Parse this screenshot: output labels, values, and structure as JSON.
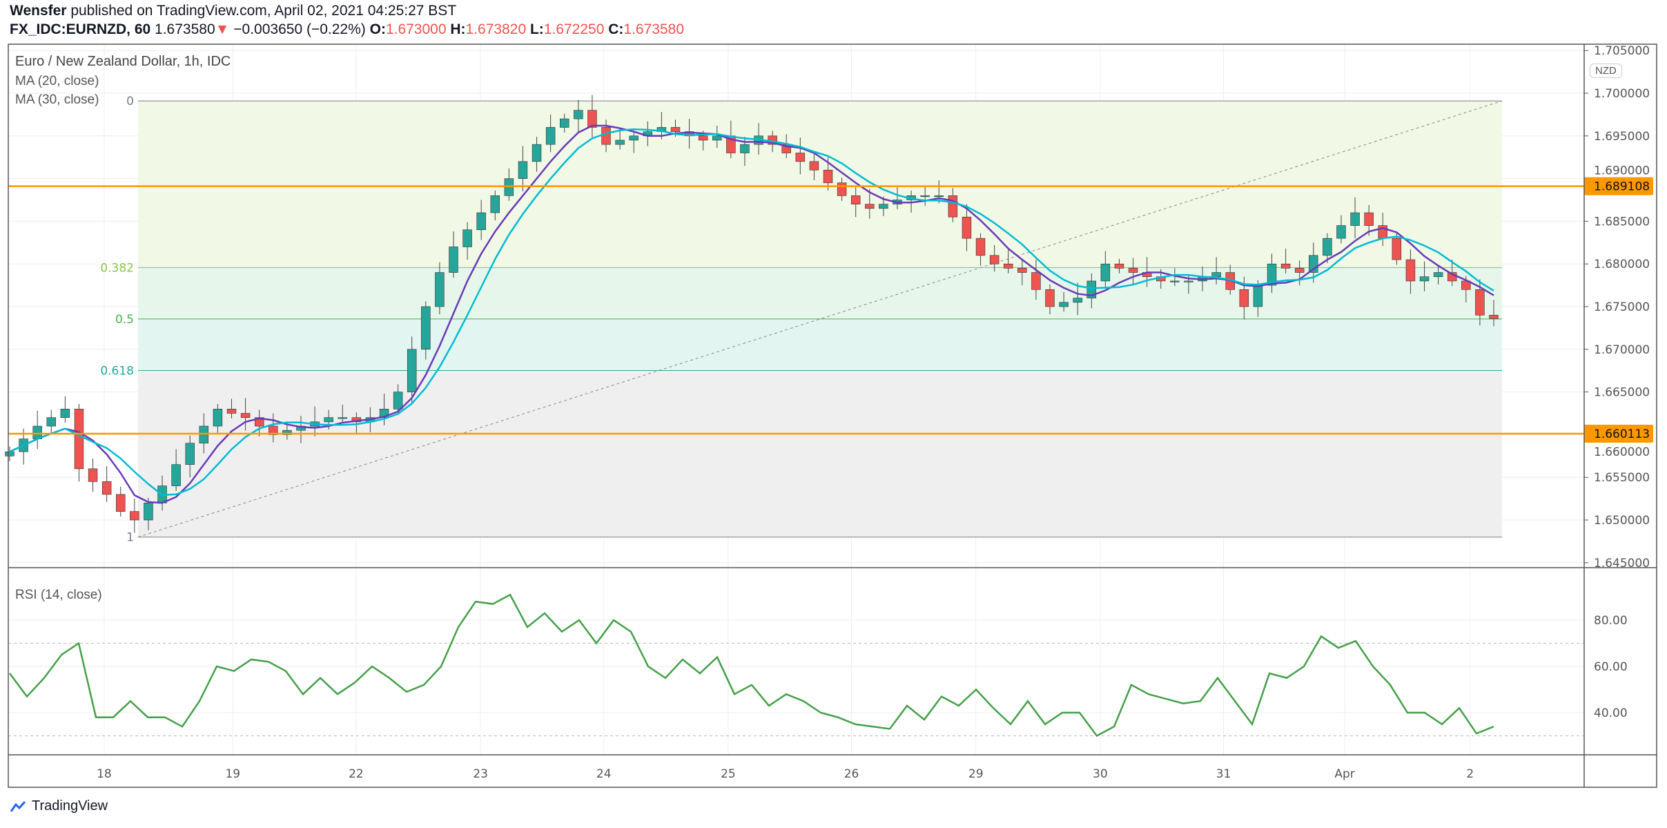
{
  "header": {
    "publisher": "Wensfer",
    "published_text": "published on TradingView.com, April 02, 2021 04:25:27 BST",
    "symbol": "FX_IDC:EURNZD, 60",
    "last": "1.673580",
    "change": "−0.003650 (−0.22%)",
    "o_label": "O:",
    "o": "1.673000",
    "h_label": "H:",
    "h": "1.673820",
    "l_label": "L:",
    "l": "1.672250",
    "c_label": "C:",
    "c": "1.673580",
    "down_arrow_color": "#ef5350"
  },
  "legend": {
    "title": "Euro / New Zealand Dollar, 1h, IDC",
    "ma20": "MA (20, close)",
    "ma30": "MA (30, close)",
    "rsi": "RSI (14, close)",
    "currency": "NZD"
  },
  "footer": {
    "brand": "TradingView"
  },
  "colors": {
    "up": "#26a69a",
    "down": "#ef5350",
    "ma20": "#673ab7",
    "ma30": "#00bcd4",
    "rsi": "#43a047",
    "level": "#ff9800"
  },
  "chart_data": [
    {
      "type": "candlestick",
      "ylim": [
        1.643,
        1.706
      ],
      "y_ticks": [
        "1.705000",
        "1.700000",
        "1.695000",
        "1.690000",
        "1.685000",
        "1.680000",
        "1.675000",
        "1.670000",
        "1.665000",
        "1.660000",
        "1.655000",
        "1.650000",
        "1.645000"
      ],
      "x_ticks": [
        "18",
        "19",
        "22",
        "23",
        "24",
        "25",
        "26",
        "29",
        "30",
        "31",
        "Apr",
        "2"
      ],
      "closes": [
        1.658,
        1.6595,
        1.661,
        1.662,
        1.663,
        1.656,
        1.6545,
        1.653,
        1.651,
        1.65,
        1.652,
        1.654,
        1.6565,
        1.659,
        1.661,
        1.663,
        1.6625,
        1.662,
        1.661,
        1.66,
        1.6605,
        1.661,
        1.6615,
        1.662,
        1.662,
        1.6615,
        1.662,
        1.663,
        1.665,
        1.67,
        1.675,
        1.679,
        1.682,
        1.684,
        1.686,
        1.688,
        1.69,
        1.692,
        1.694,
        1.696,
        1.697,
        1.698,
        1.696,
        1.694,
        1.6945,
        1.695,
        1.6955,
        1.696,
        1.6955,
        1.695,
        1.6945,
        1.695,
        1.693,
        1.694,
        1.695,
        1.694,
        1.693,
        1.692,
        1.691,
        1.6895,
        1.688,
        1.687,
        1.6865,
        1.687,
        1.6875,
        1.688,
        1.688,
        1.688,
        1.6855,
        1.683,
        1.681,
        1.68,
        1.6795,
        1.679,
        1.677,
        1.675,
        1.6755,
        1.676,
        1.678,
        1.68,
        1.6795,
        1.679,
        1.6785,
        1.678,
        1.678,
        1.678,
        1.6785,
        1.679,
        1.677,
        1.675,
        1.6775,
        1.68,
        1.6795,
        1.679,
        1.681,
        1.683,
        1.6845,
        1.686,
        1.6845,
        1.683,
        1.6805,
        1.678,
        1.6785,
        1.679,
        1.678,
        1.677,
        1.674,
        1.6736
      ],
      "ma_periods": [
        20,
        30
      ],
      "levels": [
        {
          "label": "1.689108",
          "value": 1.689108
        },
        {
          "label": "1.660113",
          "value": 1.660113
        }
      ],
      "fibonacci": {
        "high": 1.6991,
        "low": 1.648,
        "levels": [
          {
            "ratio": 0,
            "label": "0"
          },
          {
            "ratio": 0.382,
            "label": "0.382"
          },
          {
            "ratio": 0.5,
            "label": "0.5"
          },
          {
            "ratio": 0.618,
            "label": "0.618"
          },
          {
            "ratio": 1,
            "label": "1"
          }
        ]
      }
    },
    {
      "type": "line",
      "name": "RSI (14, close)",
      "ylim": [
        25,
        95
      ],
      "y_ticks": [
        "80.00",
        "60.00",
        "40.00"
      ],
      "bands": [
        70,
        30
      ],
      "values": [
        57,
        47,
        55,
        65,
        70,
        38,
        38,
        45,
        38,
        38,
        34,
        45,
        60,
        58,
        63,
        62,
        58,
        48,
        55,
        48,
        53,
        60,
        55,
        49,
        52,
        60,
        77,
        88,
        87,
        91,
        77,
        83,
        75,
        80,
        70,
        80,
        75,
        60,
        55,
        63,
        57,
        64,
        48,
        52,
        43,
        48,
        45,
        40,
        38,
        35,
        34,
        33,
        43,
        37,
        47,
        43,
        50,
        42,
        35,
        45,
        35,
        40,
        40,
        30,
        34,
        52,
        48,
        46,
        44,
        45,
        55,
        45,
        35,
        57,
        55,
        60,
        73,
        68,
        71,
        60,
        52,
        40,
        40,
        35,
        42,
        31,
        34
      ]
    }
  ]
}
